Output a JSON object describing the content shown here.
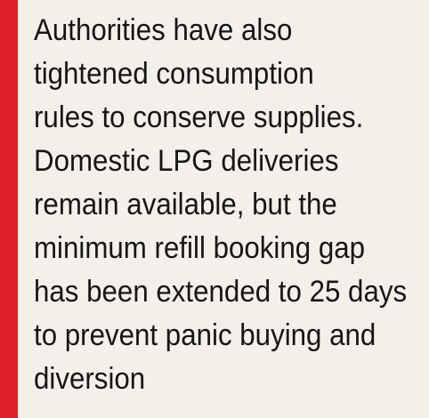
{
  "callout": {
    "lines": [
      "Authorities have also",
      "tightened consumption",
      "rules to conserve supplies.",
      "Domestic LPG deliveries",
      "remain available, but the",
      "minimum refill booking gap",
      "has been extended to 25 days",
      "to prevent panic buying and",
      "diversion"
    ]
  },
  "colors": {
    "accent": "#e0202a",
    "background": "#f4efe8",
    "text": "#161616"
  }
}
